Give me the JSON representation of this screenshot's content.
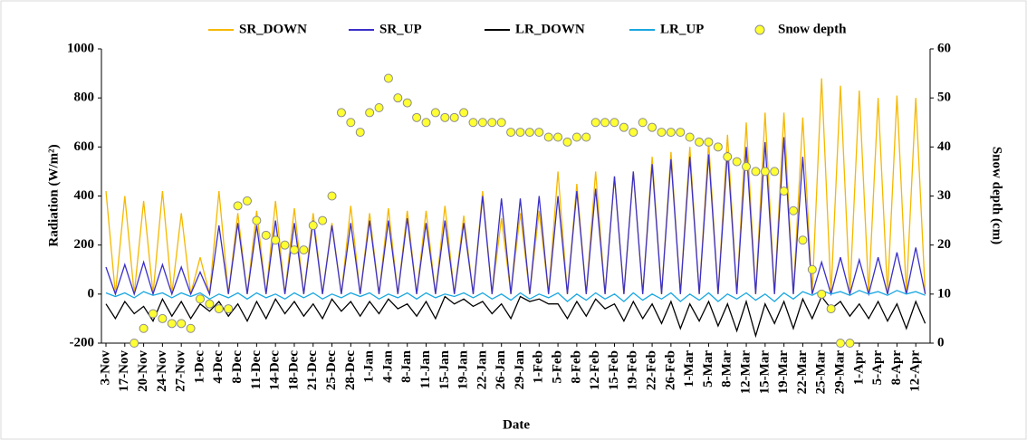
{
  "chart_data": {
    "type": "line",
    "xlabel": "Date",
    "ylabel": "Radiation (W/m²)",
    "y2label": "Snow depth (cm)",
    "categories": [
      "3-Nov",
      null,
      "17-Nov",
      null,
      "20-Nov",
      null,
      "24-Nov",
      null,
      "27-Nov",
      null,
      "1-Dec",
      null,
      "4-Dec",
      null,
      "8-Dec",
      null,
      "11-Dec",
      null,
      "14-Dec",
      null,
      "18-Dec",
      null,
      "21-Dec",
      null,
      "25-Dec",
      null,
      "28-Dec",
      null,
      "1-Jan",
      null,
      "4-Jan",
      null,
      "8-Jan",
      null,
      "11-Jan",
      null,
      "15-Jan",
      null,
      "19-Jan",
      null,
      "22-Jan",
      null,
      "26-Jan",
      null,
      "29-Jan",
      null,
      "1-Feb",
      null,
      "5-Feb",
      null,
      "8-Feb",
      null,
      "12-Feb",
      null,
      "15-Feb",
      null,
      "19-Feb",
      null,
      "22-Feb",
      null,
      "26-Feb",
      null,
      "1-Mar",
      null,
      "5-Mar",
      null,
      "8-Mar",
      null,
      "12-Mar",
      null,
      "15-Mar",
      null,
      "19-Mar",
      null,
      "22-Mar",
      null,
      "25-Mar",
      null,
      "29-Mar",
      null,
      "1-Apr",
      null,
      "5-Apr",
      null,
      "8-Apr",
      null,
      "12-Apr",
      null
    ],
    "series": [
      {
        "name": "SR_DOWN",
        "type": "line",
        "color": "#f5b800",
        "values": [
          420,
          0,
          400,
          0,
          380,
          0,
          420,
          0,
          330,
          0,
          150,
          0,
          420,
          0,
          330,
          0,
          340,
          0,
          380,
          0,
          350,
          0,
          330,
          0,
          290,
          0,
          360,
          0,
          330,
          0,
          350,
          0,
          340,
          0,
          340,
          0,
          360,
          0,
          320,
          0,
          420,
          0,
          310,
          0,
          330,
          0,
          340,
          0,
          500,
          0,
          450,
          0,
          500,
          0,
          480,
          0,
          500,
          0,
          560,
          0,
          580,
          0,
          600,
          0,
          620,
          0,
          650,
          0,
          700,
          0,
          740,
          0,
          740,
          0,
          720,
          0,
          880,
          0,
          850,
          0,
          830,
          0,
          800,
          0,
          810,
          0,
          800,
          0
        ]
      },
      {
        "name": "SR_UP",
        "type": "line",
        "color": "#3b30c8",
        "values": [
          110,
          0,
          120,
          0,
          130,
          0,
          120,
          0,
          110,
          0,
          90,
          0,
          280,
          0,
          290,
          0,
          280,
          0,
          300,
          0,
          290,
          0,
          300,
          0,
          280,
          0,
          290,
          0,
          300,
          0,
          300,
          0,
          310,
          0,
          290,
          0,
          300,
          0,
          290,
          0,
          400,
          0,
          390,
          0,
          390,
          0,
          400,
          0,
          400,
          0,
          420,
          0,
          430,
          0,
          480,
          0,
          500,
          0,
          530,
          0,
          550,
          0,
          560,
          0,
          570,
          0,
          580,
          0,
          600,
          0,
          620,
          0,
          640,
          0,
          560,
          0,
          130,
          0,
          150,
          0,
          140,
          0,
          150,
          0,
          170,
          0,
          190,
          0
        ]
      },
      {
        "name": "LR_DOWN",
        "type": "line",
        "color": "#000000",
        "values": [
          -40,
          -100,
          -30,
          -80,
          -50,
          -110,
          -20,
          -90,
          -30,
          -100,
          -40,
          -70,
          -30,
          -90,
          -40,
          -110,
          -30,
          -100,
          -20,
          -80,
          -30,
          -90,
          -40,
          -100,
          -20,
          -70,
          -30,
          -90,
          -30,
          -80,
          -20,
          -60,
          -40,
          -90,
          -30,
          -100,
          -10,
          -40,
          -20,
          -50,
          -30,
          -80,
          -40,
          -100,
          -10,
          -30,
          -20,
          -40,
          -40,
          -100,
          -30,
          -90,
          -20,
          -60,
          -40,
          -110,
          -30,
          -100,
          -40,
          -120,
          -30,
          -140,
          -40,
          -110,
          -30,
          -130,
          -40,
          -150,
          -30,
          -170,
          -40,
          -120,
          -30,
          -140,
          -20,
          -100,
          -10,
          -60,
          -30,
          -90,
          -40,
          -100,
          -30,
          -110,
          -40,
          -140,
          -30,
          -120
        ]
      },
      {
        "name": "LR_UP",
        "type": "line",
        "color": "#1aa7e0",
        "values": [
          5,
          -10,
          5,
          -15,
          10,
          -5,
          5,
          -15,
          5,
          -10,
          5,
          -20,
          0,
          -15,
          5,
          -20,
          5,
          -15,
          0,
          -20,
          5,
          -15,
          5,
          -20,
          0,
          -15,
          5,
          -10,
          5,
          -20,
          0,
          -15,
          5,
          -20,
          5,
          -15,
          0,
          -10,
          5,
          -15,
          5,
          -20,
          0,
          -25,
          5,
          -20,
          0,
          -15,
          5,
          -30,
          0,
          -25,
          5,
          -20,
          0,
          -30,
          5,
          -25,
          0,
          -20,
          5,
          -30,
          0,
          -25,
          5,
          -30,
          0,
          -20,
          5,
          -25,
          0,
          -30,
          5,
          -20,
          10,
          -5,
          15,
          0,
          10,
          -5,
          15,
          0,
          10,
          -5,
          15,
          0,
          10,
          -5
        ]
      },
      {
        "name": "Snow depth",
        "type": "scatter",
        "axis": "y2",
        "color": "#ffff33",
        "values": [
          null,
          null,
          null,
          0,
          3,
          6,
          5,
          4,
          4,
          3,
          9,
          8,
          7,
          7,
          28,
          29,
          25,
          22,
          21,
          20,
          19,
          19,
          24,
          25,
          30,
          47,
          45,
          43,
          47,
          48,
          54,
          50,
          49,
          46,
          45,
          47,
          46,
          46,
          47,
          45,
          45,
          45,
          45,
          43,
          43,
          43,
          43,
          42,
          42,
          41,
          42,
          42,
          45,
          45,
          45,
          44,
          43,
          45,
          44,
          43,
          43,
          43,
          42,
          41,
          41,
          40,
          38,
          37,
          36,
          35,
          35,
          35,
          31,
          27,
          21,
          15,
          10,
          7,
          0,
          0,
          null,
          null,
          null,
          null,
          null,
          null,
          null,
          null
        ]
      }
    ],
    "ylim": [
      -200,
      1000
    ],
    "yticks": [
      -200,
      0,
      200,
      400,
      600,
      800,
      1000
    ],
    "y2lim": [
      0,
      60
    ],
    "y2ticks": [
      0,
      10,
      20,
      30,
      40,
      50,
      60
    ],
    "legend": "top"
  }
}
